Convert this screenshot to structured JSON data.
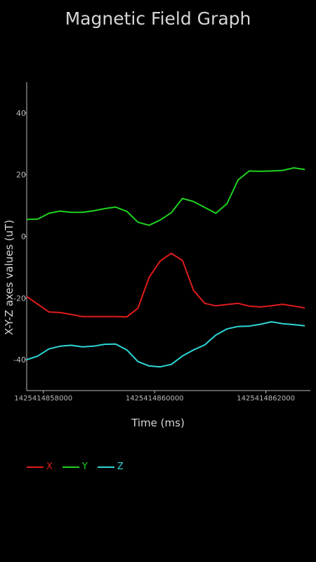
{
  "chart_data": {
    "type": "line",
    "title": "Magnetic Field Graph",
    "xlabel": "Time (ms)",
    "ylabel": "X-Y-Z axes values (uT)",
    "x_ticks": [
      1425414858000,
      1425414860000,
      1425414862000
    ],
    "x_tick_labels": [
      "1425414858000",
      "1425414860000",
      "1425414862000"
    ],
    "y_ticks": [
      40,
      20,
      0,
      -20,
      -40
    ],
    "y_tick_labels": [
      "40",
      "20",
      "0",
      "-20",
      "-40"
    ],
    "xlim": [
      1425414857700,
      1425414862800
    ],
    "ylim": [
      -50,
      50
    ],
    "grid": false,
    "legend_position": "bottom-left",
    "x": [
      1425414857700,
      1425414857900,
      1425414858100,
      1425414858300,
      1425414858500,
      1425414858700,
      1425414858900,
      1425414859100,
      1425414859300,
      1425414859500,
      1425414859700,
      1425414859900,
      1425414860100,
      1425414860300,
      1425414860500,
      1425414860700,
      1425414860900,
      1425414861100,
      1425414861300,
      1425414861500,
      1425414861700,
      1425414861900,
      1425414862100,
      1425414862300,
      1425414862500,
      1425414862700
    ],
    "series": [
      {
        "name": "X",
        "color": "#e01b1b",
        "values": [
          -19.5,
          -22,
          -24.5,
          -24.7,
          -25.3,
          -26,
          -26,
          -26,
          -26,
          -26.1,
          -23.3,
          -13.3,
          -8,
          -5.5,
          -7.8,
          -17.5,
          -21.7,
          -22.5,
          -22.1,
          -21.7,
          -22.6,
          -22.9,
          -22.5,
          -22,
          -22.6,
          -23.2
        ]
      },
      {
        "name": "Y",
        "color": "#1fd21f",
        "values": [
          5.5,
          5.6,
          7.5,
          8.2,
          7.8,
          7.8,
          8.3,
          9,
          9.5,
          8.1,
          4.6,
          3.6,
          5.3,
          7.7,
          12.3,
          11.3,
          9.4,
          7.5,
          10.6,
          18.3,
          21.2,
          21.1,
          21.2,
          21.4,
          22.2,
          21.7
        ]
      },
      {
        "name": "Z",
        "color": "#2fd6d6",
        "values": [
          -40,
          -38.8,
          -36.5,
          -35.6,
          -35.3,
          -35.8,
          -35.6,
          -35,
          -34.9,
          -36.8,
          -40.6,
          -42,
          -42.3,
          -41.5,
          -38.8,
          -36.8,
          -35.2,
          -32,
          -30,
          -29.2,
          -29.1,
          -28.5,
          -27.7,
          -28.3,
          -28.6,
          -29
        ]
      }
    ]
  }
}
